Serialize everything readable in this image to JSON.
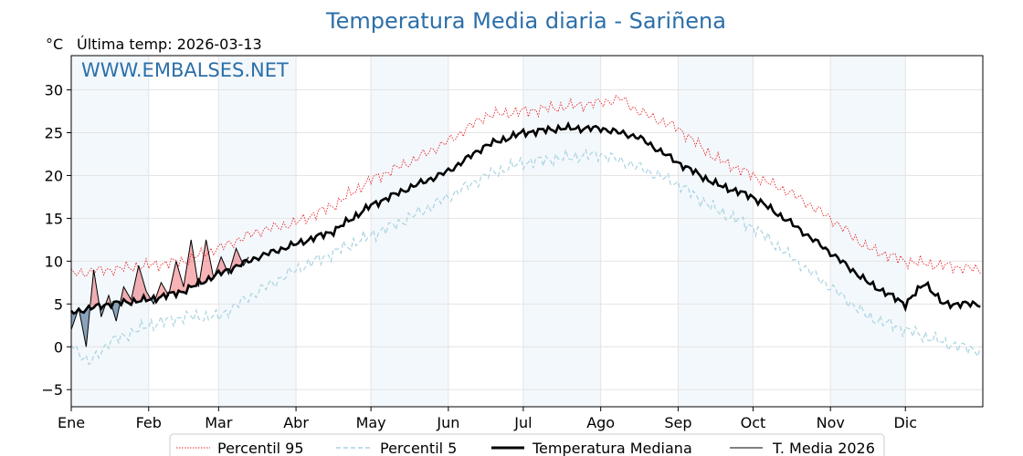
{
  "chart_data": {
    "type": "line",
    "title": "Temperatura Media diaria - Sariñena",
    "unit_label": "°C",
    "last_temp_label": "Última temp: 2026-03-13",
    "watermark": "WWW.EMBALSES.NET",
    "months": [
      "Ene",
      "Feb",
      "Mar",
      "Abr",
      "May",
      "Jun",
      "Jul",
      "Ago",
      "Sep",
      "Oct",
      "Nov",
      "Dic"
    ],
    "month_start_days": [
      0,
      31,
      59,
      90,
      120,
      151,
      181,
      212,
      243,
      273,
      304,
      334
    ],
    "shaded_month_indices": [
      0,
      2,
      4,
      6,
      8,
      10
    ],
    "xlim": [
      0,
      365
    ],
    "ylim": [
      -7,
      34
    ],
    "yticks": [
      -5,
      0,
      5,
      10,
      15,
      20,
      25,
      30
    ],
    "grid": true,
    "legend_position": "bottom-center",
    "series": [
      {
        "name": "Percentil 95",
        "style": "dotted",
        "color": "#e8262b",
        "x": [
          0,
          15,
          31,
          45,
          59,
          75,
          90,
          105,
          120,
          135,
          151,
          166,
          181,
          196,
          212,
          220,
          227,
          243,
          258,
          273,
          288,
          304,
          319,
          334,
          349,
          364
        ],
        "y": [
          8.5,
          9.0,
          9.5,
          10.0,
          11.5,
          13.5,
          14.5,
          16.5,
          19.5,
          21.5,
          24.0,
          27.0,
          27.5,
          28.0,
          28.5,
          29.0,
          27.5,
          25.5,
          22.0,
          20.0,
          18.0,
          15.0,
          11.5,
          10.0,
          9.5,
          9.0
        ]
      },
      {
        "name": "Percentil 5",
        "style": "dashed",
        "color": "#a9d3e0",
        "x": [
          0,
          7,
          15,
          31,
          45,
          59,
          75,
          90,
          105,
          120,
          135,
          151,
          166,
          181,
          196,
          212,
          227,
          243,
          258,
          273,
          288,
          304,
          319,
          334,
          349,
          364
        ],
        "y": [
          0.5,
          -2.0,
          0.5,
          2.5,
          3.5,
          3.5,
          6.5,
          9.0,
          11.0,
          13.0,
          15.0,
          17.5,
          20.0,
          21.5,
          22.0,
          22.5,
          21.0,
          19.0,
          16.0,
          14.0,
          10.5,
          7.0,
          3.5,
          2.0,
          0.5,
          -0.5
        ]
      },
      {
        "name": "Temperatura Mediana",
        "style": "solid",
        "color": "#000000",
        "x": [
          0,
          15,
          31,
          45,
          59,
          75,
          90,
          105,
          120,
          135,
          151,
          166,
          181,
          196,
          212,
          227,
          243,
          258,
          273,
          288,
          304,
          319,
          334,
          342,
          349,
          364
        ],
        "y": [
          4.0,
          5.0,
          5.5,
          6.5,
          8.5,
          10.5,
          12.0,
          13.5,
          16.5,
          18.5,
          20.5,
          23.5,
          25.0,
          25.5,
          25.5,
          24.5,
          21.5,
          19.0,
          17.5,
          14.5,
          11.0,
          7.5,
          5.0,
          7.5,
          5.0,
          5.0
        ]
      },
      {
        "name": "T. Media 2026",
        "style": "thin",
        "color": "#000000",
        "x": [
          0,
          3,
          6,
          9,
          12,
          15,
          18,
          21,
          24,
          27,
          30,
          33,
          36,
          39,
          42,
          45,
          48,
          51,
          54,
          57,
          60,
          63,
          66,
          69,
          71
        ],
        "y": [
          2.0,
          4.5,
          0.0,
          9.0,
          3.5,
          6.0,
          3.0,
          7.0,
          5.5,
          9.5,
          6.5,
          5.0,
          7.5,
          6.0,
          10.0,
          7.0,
          12.5,
          7.0,
          12.5,
          8.0,
          10.5,
          8.5,
          11.5,
          9.5,
          10.5
        ]
      }
    ],
    "fill_above_median_color": "#e8262b",
    "fill_below_median_color": "#5a7fa0"
  }
}
